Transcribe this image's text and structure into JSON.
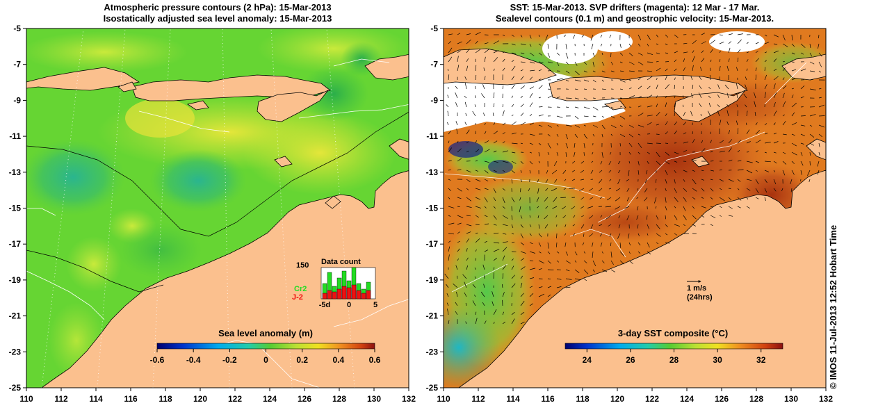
{
  "left_panel": {
    "title_line1": "Atmospheric pressure contours (2 hPa): 15-Mar-2013",
    "title_line2": "Isostatically adjusted sea level anomaly: 15-Mar-2013",
    "colorbar": {
      "label": "Sea level anomaly (m)",
      "ticks": [
        "-0.6",
        "-0.4",
        "-0.2",
        "0",
        "0.2",
        "0.4",
        "0.6"
      ]
    },
    "inset": {
      "title": "Data count",
      "y_tick": "150",
      "x_ticks": [
        "-5d",
        "0",
        "5"
      ],
      "series": [
        {
          "name": "Cr2",
          "color": "#22dd22"
        },
        {
          "name": "J-2",
          "color": "#ee1111"
        }
      ]
    }
  },
  "right_panel": {
    "title_line1": "SST: 15-Mar-2013. SVP drifters (magenta): 12 Mar - 17 Mar.",
    "title_line2": "Sealevel contours (0.1 m) and geostrophic velocity: 15-Mar-2013.",
    "colorbar": {
      "label": "3-day SST composite (°C)",
      "ticks": [
        "24",
        "26",
        "28",
        "30",
        "32"
      ]
    },
    "scale": {
      "label": "1 m/s",
      "sublabel": "(24hrs)"
    }
  },
  "axes": {
    "x_ticks": [
      "110",
      "112",
      "114",
      "116",
      "118",
      "120",
      "122",
      "124",
      "126",
      "128",
      "130",
      "132"
    ],
    "y_ticks": [
      "-5",
      "-7",
      "-9",
      "-11",
      "-13",
      "-15",
      "-17",
      "-19",
      "-21",
      "-23",
      "-25"
    ]
  },
  "credit": "© IMOS 11-Jul-2013 12:52 Hobart Time",
  "colors": {
    "land": "#fbc08e",
    "ocean_left": "#66d533",
    "ocean_right": "#e07a1f",
    "axis": "#000000"
  }
}
